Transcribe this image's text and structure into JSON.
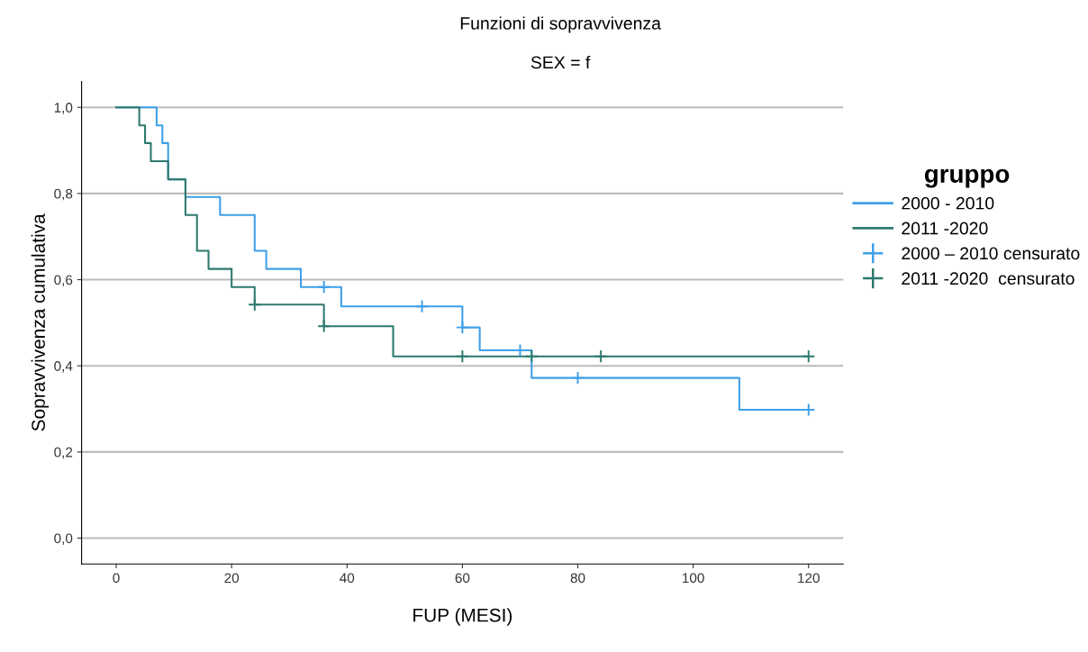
{
  "chart_data": {
    "type": "step",
    "title": "Funzioni di sopravvivenza",
    "subtitle": "SEX = f",
    "xlabel": "FUP (MESI)",
    "ylabel": "Sopravvivenza cumulativa",
    "legend_title": "gruppo",
    "legend": "right",
    "grid": "y",
    "xlim": [
      -6,
      126
    ],
    "xticks": [
      0,
      20,
      40,
      60,
      80,
      100,
      120
    ],
    "ylim": [
      -0.06,
      1.06
    ],
    "yticks": [
      {
        "value": 0,
        "label": "0,0"
      },
      {
        "value": 0.2,
        "label": "0,2"
      },
      {
        "value": 0.4,
        "label": "0,4"
      },
      {
        "value": 0.6,
        "label": "0,6"
      },
      {
        "value": 0.8,
        "label": "0,8"
      },
      {
        "value": 1,
        "label": "1,0"
      }
    ],
    "series": [
      {
        "name": "2000 - 2010",
        "color": "#3fa0e8",
        "x": [
          0,
          7,
          8,
          9,
          12,
          18,
          24,
          26,
          32,
          39,
          60,
          63,
          72,
          108,
          120
        ],
        "values": [
          1.0,
          0.958,
          0.917,
          0.833,
          0.792,
          0.75,
          0.667,
          0.625,
          0.583,
          0.538,
          0.489,
          0.436,
          0.372,
          0.298,
          0.298
        ]
      },
      {
        "name": "2011 -2020",
        "color": "#2e7a6e",
        "x": [
          0,
          4,
          5,
          6,
          9,
          12,
          14,
          16,
          20,
          24,
          36,
          48,
          120
        ],
        "values": [
          1.0,
          0.958,
          0.917,
          0.875,
          0.833,
          0.75,
          0.667,
          0.625,
          0.583,
          0.542,
          0.492,
          0.422,
          0.422
        ]
      },
      {
        "name": "2000 – 2010 censurato",
        "color": "#3fa0e8",
        "type": "scatter",
        "marker": "cross",
        "x": [
          36,
          53,
          60,
          70,
          80,
          120
        ],
        "values": [
          0.583,
          0.538,
          0.489,
          0.436,
          0.372,
          0.298
        ]
      },
      {
        "name": "2011 -2020  censurato",
        "color": "#2e7a6e",
        "type": "scatter",
        "marker": "cross",
        "x": [
          24,
          36,
          60,
          72,
          84,
          120
        ],
        "values": [
          0.542,
          0.492,
          0.422,
          0.422,
          0.422,
          0.422
        ]
      }
    ]
  }
}
